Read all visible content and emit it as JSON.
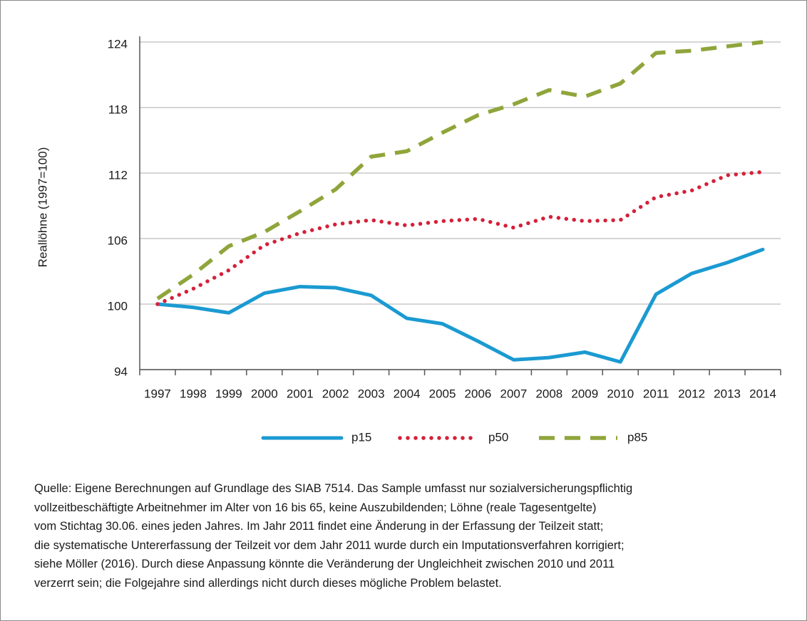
{
  "chart_data": {
    "type": "line",
    "y_label": "Reallöhne (1997=100)",
    "categories": [
      "1997",
      "1998",
      "1999",
      "2000",
      "2001",
      "2002",
      "2003",
      "2004",
      "2005",
      "2006",
      "2007",
      "2008",
      "2009",
      "2010",
      "2011",
      "2012",
      "2013",
      "2014"
    ],
    "ylim": [
      94,
      124
    ],
    "yticks": [
      94,
      100,
      106,
      112,
      118,
      124
    ],
    "grid": true,
    "series": [
      {
        "name": "p15",
        "color": "#1b9ad2",
        "style": "solid",
        "values": [
          100,
          99.7,
          99.2,
          101.0,
          101.6,
          101.5,
          100.8,
          98.7,
          98.2,
          96.6,
          94.9,
          95.1,
          95.6,
          94.7,
          100.9,
          102.8,
          103.8,
          105.0
        ]
      },
      {
        "name": "p50",
        "color": "#d4213a",
        "style": "dotted",
        "values": [
          100,
          101.4,
          103.1,
          105.4,
          106.5,
          107.3,
          107.7,
          107.2,
          107.6,
          107.8,
          107.0,
          108.0,
          107.6,
          107.7,
          109.8,
          110.4,
          111.8,
          112.1
        ]
      },
      {
        "name": "p85",
        "color": "#8fa53b",
        "style": "dashed",
        "values": [
          100.5,
          102.7,
          105.3,
          106.6,
          108.5,
          110.5,
          113.5,
          114.0,
          115.7,
          117.3,
          118.3,
          119.6,
          119.0,
          120.2,
          123.0,
          123.2,
          123.6,
          124.0
        ]
      }
    ],
    "note": [
      "Quelle: Eigene Berechnungen auf Grundlage des SIAB 7514. Das Sample umfasst nur sozialversicherungspflichtig",
      "vollzeitbeschäftigte Arbeitnehmer im Alter von 16 bis 65, keine Auszubildenden; Löhne (reale Tagesentgelte)",
      "vom Stichtag 30.06. eines jeden Jahres. Im Jahr 2011 findet eine Änderung in der Erfassung der Teilzeit statt;",
      "die systematische Untererfassung der Teilzeit vor dem Jahr 2011 wurde durch ein Imputationsverfahren korrigiert;",
      "siehe Möller (2016). Durch diese Anpassung könnte die Veränderung der Ungleichheit zwischen 2010 und 2011",
      "verzerrt sein; die Folgejahre sind allerdings nicht durch dieses mögliche Problem belastet."
    ]
  }
}
